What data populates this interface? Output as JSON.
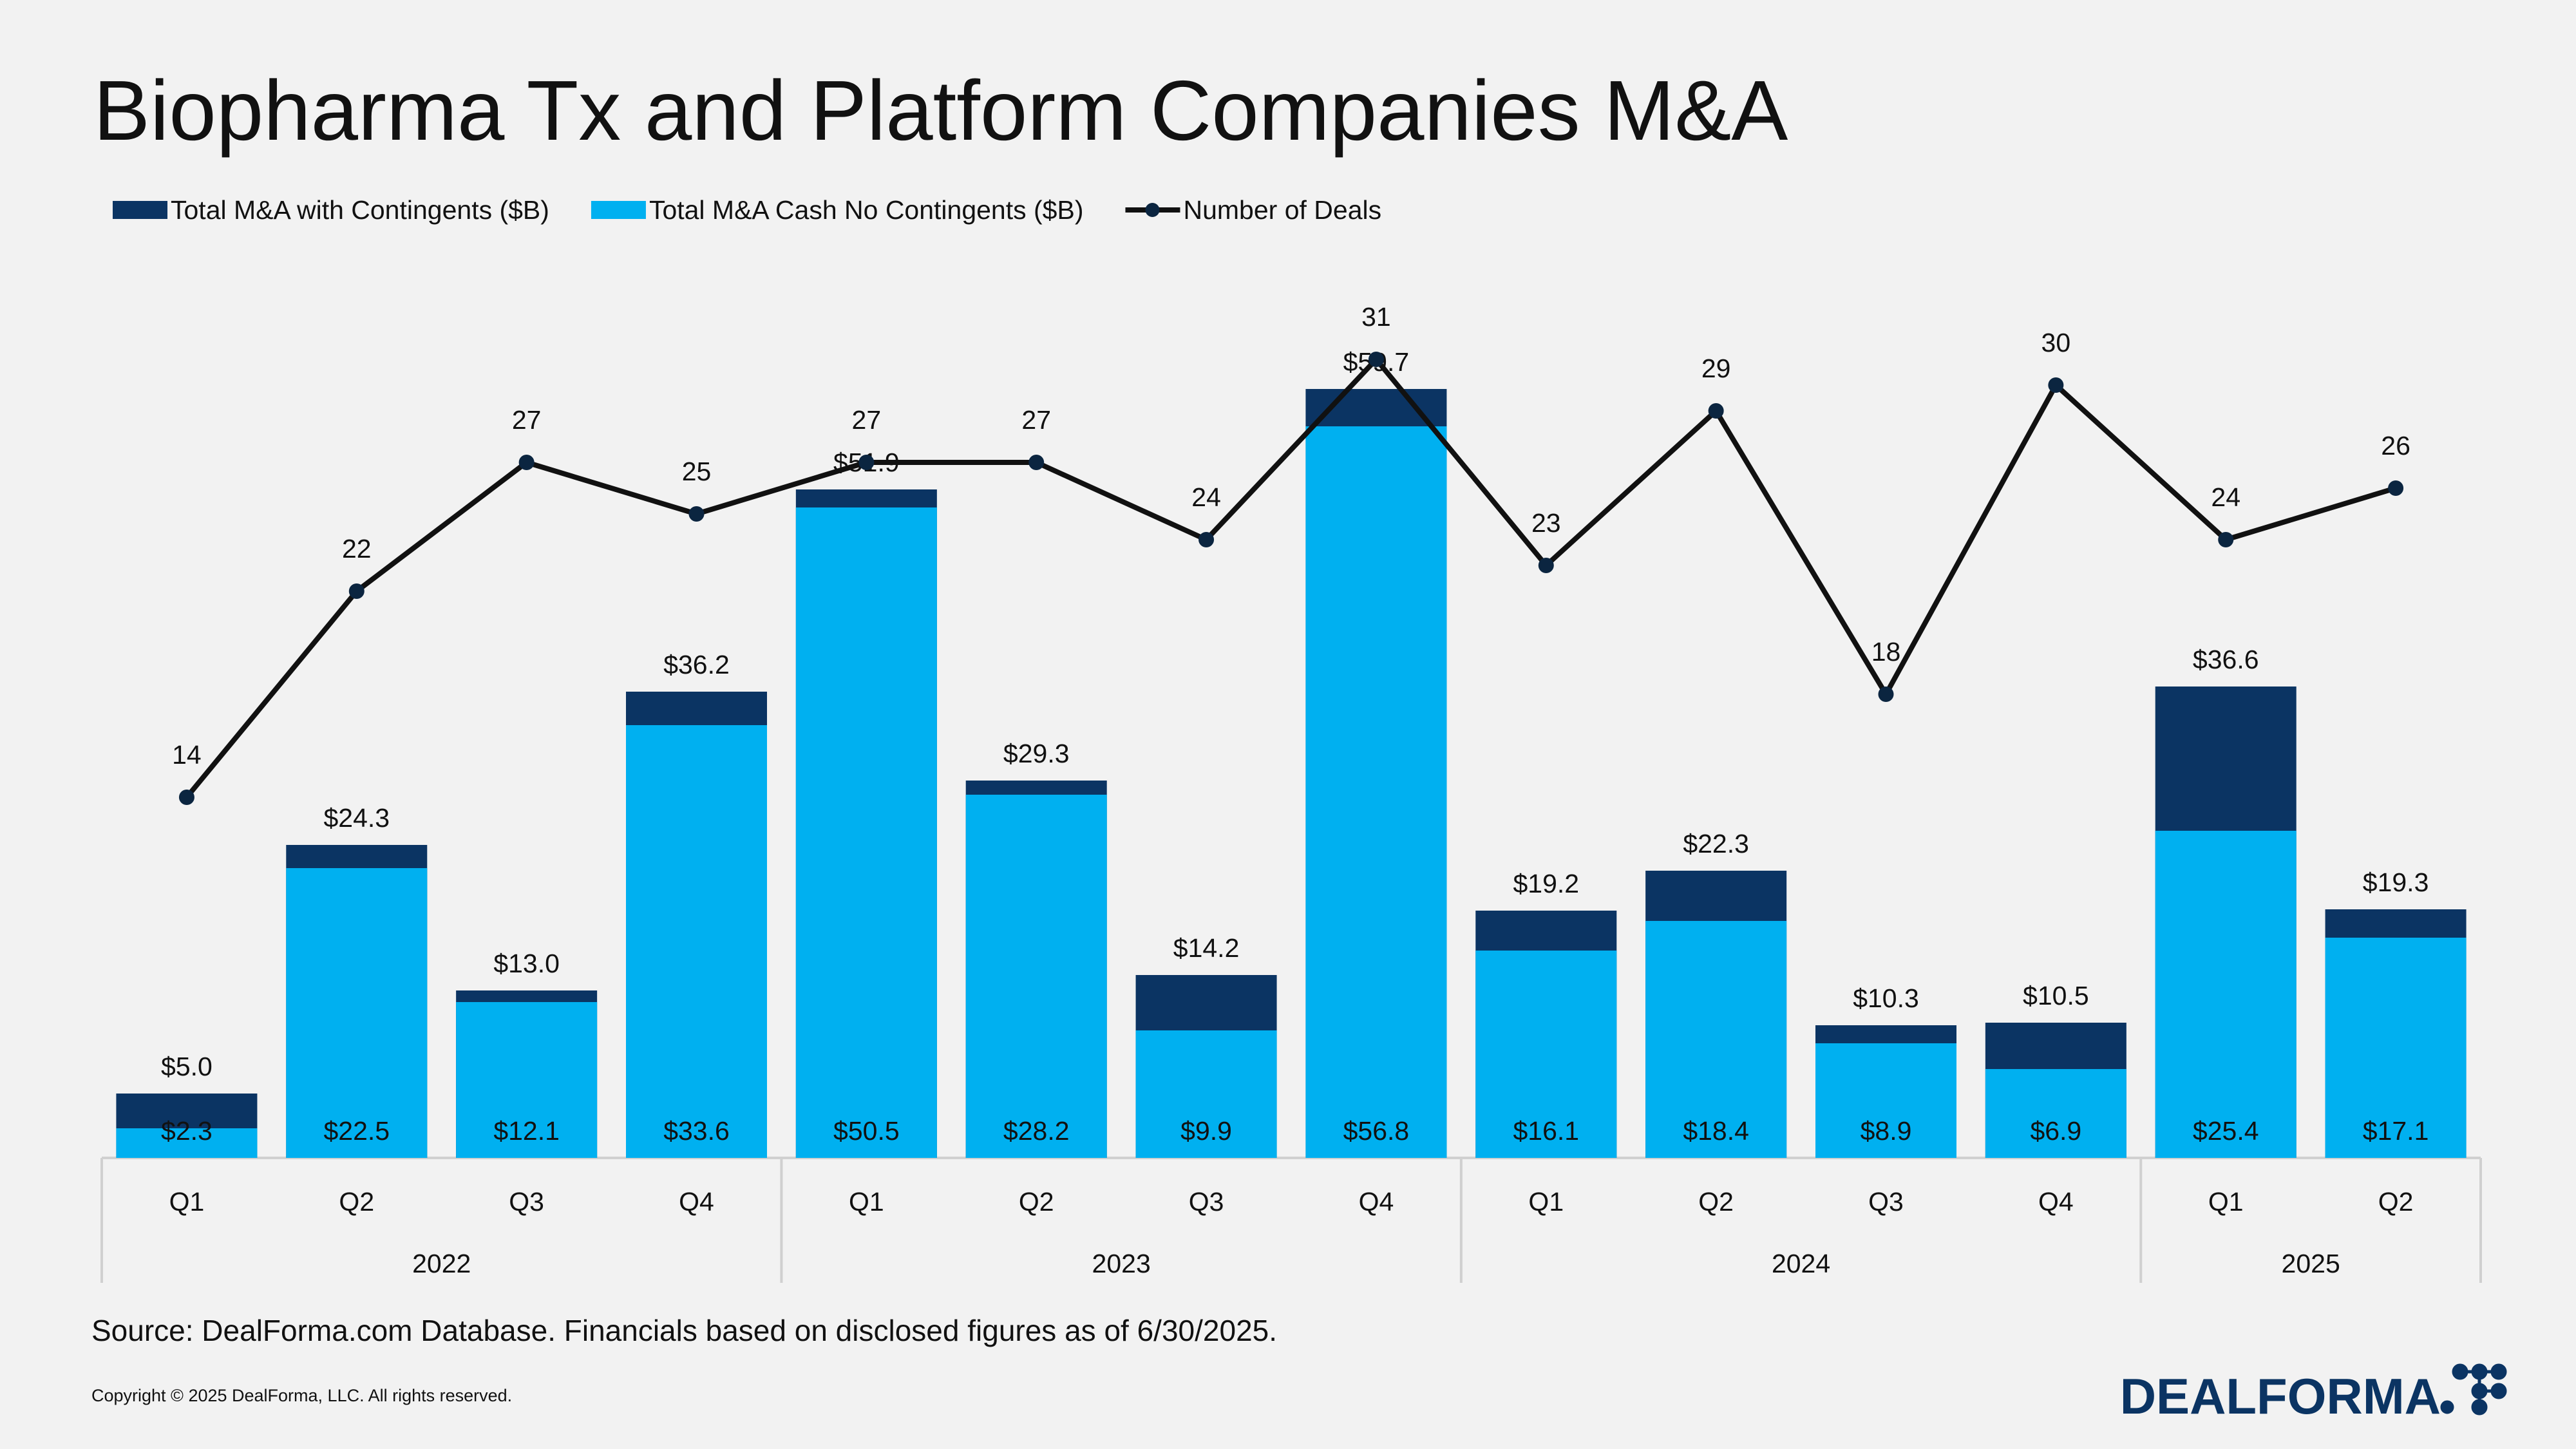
{
  "chart_data": {
    "type": "bar-line",
    "title": "Biopharma Tx and Platform Companies M&A",
    "category_groups": [
      {
        "label": "2022",
        "categories": [
          "Q1",
          "Q2",
          "Q3",
          "Q4"
        ]
      },
      {
        "label": "2023",
        "categories": [
          "Q1",
          "Q2",
          "Q3",
          "Q4"
        ]
      },
      {
        "label": "2024",
        "categories": [
          "Q1",
          "Q2",
          "Q3",
          "Q4"
        ]
      },
      {
        "label": "2025",
        "categories": [
          "Q1",
          "Q2"
        ]
      }
    ],
    "series": [
      {
        "name": "Total M&A with Contingents ($B)",
        "color": "#0b3463",
        "type": "bar",
        "values": [
          5.0,
          24.3,
          13.0,
          36.2,
          51.9,
          29.3,
          14.2,
          59.7,
          19.2,
          22.3,
          10.3,
          10.5,
          36.6,
          19.3
        ],
        "value_labels": [
          "$5.0",
          "$24.3",
          "$13.0",
          "$36.2",
          "$51.9",
          "$29.3",
          "$14.2",
          "$59.7",
          "$19.2",
          "$22.3",
          "$10.3",
          "$10.5",
          "$36.6",
          "$19.3"
        ]
      },
      {
        "name": "Total M&A Cash No Contingents ($B)",
        "color": "#00b0f0",
        "type": "bar",
        "values": [
          2.3,
          22.5,
          12.1,
          33.6,
          50.5,
          28.2,
          9.9,
          56.8,
          16.1,
          18.4,
          8.9,
          6.9,
          25.4,
          17.1
        ],
        "value_labels": [
          "$2.3",
          "$22.5",
          "$12.1",
          "$33.6",
          "$50.5",
          "$28.2",
          "$9.9",
          "$56.8",
          "$16.1",
          "$18.4",
          "$8.9",
          "$6.9",
          "$25.4",
          "$17.1"
        ]
      },
      {
        "name": "Number of Deals",
        "color": "#111111",
        "marker_color": "#0b2540",
        "type": "line",
        "axis": "y2",
        "values": [
          14,
          22,
          27,
          25,
          27,
          27,
          24,
          31,
          23,
          29,
          18,
          30,
          24,
          26
        ]
      }
    ],
    "ylim": [
      0,
      70
    ],
    "y2lim": [
      0,
      35
    ],
    "source": "Source: DealForma.com Database. Financials based on disclosed figures as of 6/30/2025.",
    "copyright": "Copyright © 2025 DealForma, LLC. All rights reserved.",
    "logo": "DEALFORMA"
  }
}
